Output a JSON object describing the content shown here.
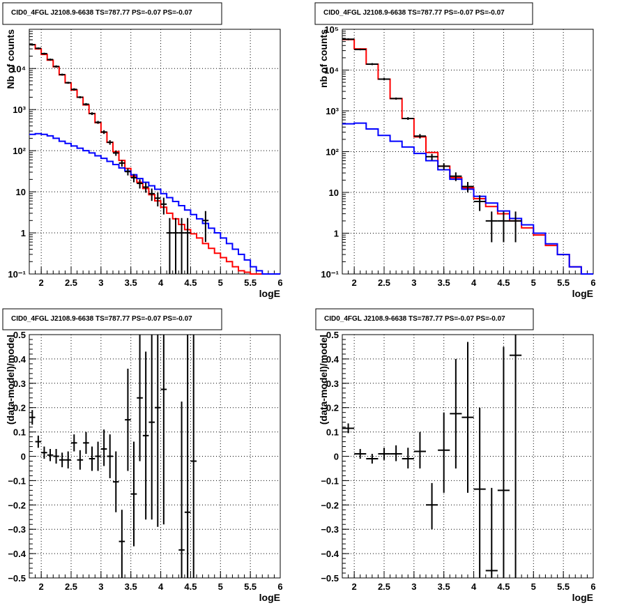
{
  "colors": {
    "total_model": "#ff0000",
    "component_model": "#0000ff",
    "data": "#000000",
    "grid": "#000000"
  },
  "chart_data": [
    {
      "id": "p1",
      "type": "line",
      "title": "CID0_4FGL J2108.9-6638 TS=787.77 PS=-0.07 PS=-0.07",
      "xlabel": "logE",
      "ylabel": "Nb of counts",
      "xlim": [
        1.8,
        6.0
      ],
      "ylim": [
        0.1,
        90000
      ],
      "yscale": "log",
      "grid": true,
      "legend": "none",
      "xticks": [
        2,
        2.5,
        3,
        3.5,
        4,
        4.5,
        5,
        5.5,
        6
      ],
      "xtick_labels": [
        "2",
        "2.5",
        "3",
        "3.5",
        "4",
        "4.5",
        "5",
        "5.5",
        "6"
      ],
      "yticks": [
        0.1,
        1,
        10,
        100,
        1000,
        10000
      ],
      "ytick_labels": [
        "10⁻¹",
        "1",
        "10",
        "10²",
        "10³",
        "10⁴"
      ],
      "bin_edges": [
        1.8,
        1.9,
        2.0,
        2.1,
        2.2,
        2.3,
        2.4,
        2.5,
        2.6,
        2.7,
        2.8,
        2.9,
        3.0,
        3.1,
        3.2,
        3.3,
        3.4,
        3.5,
        3.6,
        3.7,
        3.8,
        3.9,
        4.0,
        4.1,
        4.2,
        4.3,
        4.4,
        4.5,
        4.6,
        4.7,
        4.8,
        4.9,
        5.0,
        5.1,
        5.2,
        5.3,
        5.4,
        5.5,
        5.6,
        5.7,
        5.8,
        5.9,
        6.0
      ],
      "series": [
        {
          "name": "",
          "role": "total",
          "color": "#ff0000",
          "values": [
            38000,
            30000,
            22000,
            16000,
            11000,
            7000,
            4500,
            3000,
            2000,
            1300,
            800,
            480,
            280,
            160,
            95,
            58,
            37,
            24,
            17,
            12,
            8.5,
            6,
            4.2,
            3.0,
            2.2,
            1.6,
            1.2,
            0.95,
            0.75,
            0.55,
            0.42,
            0.32,
            0.25,
            0.2,
            0.15,
            0.12,
            0.11,
            0.1,
            0.1,
            0.1,
            0.1,
            0.1
          ]
        },
        {
          "name": "",
          "role": "component",
          "color": "#0000ff",
          "values": [
            250,
            260,
            250,
            230,
            200,
            170,
            150,
            130,
            115,
            100,
            88,
            75,
            65,
            55,
            46,
            38,
            32,
            26,
            21,
            17,
            14,
            11.5,
            9,
            7.2,
            5.8,
            4.6,
            3.6,
            2.8,
            2.2,
            1.7,
            1.3,
            1.0,
            0.75,
            0.55,
            0.4,
            0.3,
            0.22,
            0.15,
            0.12,
            0.1,
            0.1,
            0.1
          ]
        }
      ],
      "points": [
        {
          "x": 1.85,
          "y": 38000,
          "lo": 36000,
          "hi": 40000,
          "xerr": 0.05
        },
        {
          "x": 1.95,
          "y": 31000,
          "lo": 29500,
          "hi": 32500,
          "xerr": 0.05
        },
        {
          "x": 2.05,
          "y": 23000,
          "lo": 21800,
          "hi": 24200,
          "xerr": 0.05
        },
        {
          "x": 2.15,
          "y": 16500,
          "lo": 15600,
          "hi": 17400,
          "xerr": 0.05
        },
        {
          "x": 2.25,
          "y": 11200,
          "lo": 10500,
          "hi": 11900,
          "xerr": 0.05
        },
        {
          "x": 2.35,
          "y": 7100,
          "lo": 6700,
          "hi": 7500,
          "xerr": 0.05
        },
        {
          "x": 2.45,
          "y": 4500,
          "lo": 4250,
          "hi": 4750,
          "xerr": 0.05
        },
        {
          "x": 2.55,
          "y": 3100,
          "lo": 2900,
          "hi": 3300,
          "xerr": 0.05
        },
        {
          "x": 2.65,
          "y": 2000,
          "lo": 1880,
          "hi": 2120,
          "xerr": 0.05
        },
        {
          "x": 2.75,
          "y": 1350,
          "lo": 1260,
          "hi": 1440,
          "xerr": 0.05
        },
        {
          "x": 2.85,
          "y": 800,
          "lo": 740,
          "hi": 860,
          "xerr": 0.05
        },
        {
          "x": 2.95,
          "y": 490,
          "lo": 450,
          "hi": 530,
          "xerr": 0.05
        },
        {
          "x": 3.05,
          "y": 285,
          "lo": 255,
          "hi": 315,
          "xerr": 0.05
        },
        {
          "x": 3.15,
          "y": 160,
          "lo": 140,
          "hi": 180,
          "xerr": 0.05
        },
        {
          "x": 3.25,
          "y": 88,
          "lo": 75,
          "hi": 101,
          "xerr": 0.05
        },
        {
          "x": 3.35,
          "y": 50,
          "lo": 41,
          "hi": 59,
          "xerr": 0.05
        },
        {
          "x": 3.45,
          "y": 31,
          "lo": 25,
          "hi": 37,
          "xerr": 0.05
        },
        {
          "x": 3.55,
          "y": 22,
          "lo": 17,
          "hi": 27,
          "xerr": 0.05
        },
        {
          "x": 3.65,
          "y": 16,
          "lo": 12,
          "hi": 20,
          "xerr": 0.05
        },
        {
          "x": 3.75,
          "y": 13,
          "lo": 9.5,
          "hi": 16.5,
          "xerr": 0.05
        },
        {
          "x": 3.85,
          "y": 9,
          "lo": 6,
          "hi": 12,
          "xerr": 0.05
        },
        {
          "x": 3.95,
          "y": 7,
          "lo": 4.4,
          "hi": 9.6,
          "xerr": 0.05
        },
        {
          "x": 4.05,
          "y": 5,
          "lo": 2.8,
          "hi": 7.2,
          "xerr": 0.05
        },
        {
          "x": 4.15,
          "y": 1,
          "lo": 0.1,
          "hi": 2.3,
          "xerr": 0.05
        },
        {
          "x": 4.25,
          "y": 1,
          "lo": 0.1,
          "hi": 2.3,
          "xerr": 0.05
        },
        {
          "x": 4.35,
          "y": 1,
          "lo": 0.1,
          "hi": 2.3,
          "xerr": 0.05
        },
        {
          "x": 4.45,
          "y": 1,
          "lo": 0.1,
          "hi": 2.3,
          "xerr": 0.05
        },
        {
          "x": 4.75,
          "y": 2,
          "lo": 0.6,
          "hi": 3.4,
          "xerr": 0.05
        }
      ]
    },
    {
      "id": "p2",
      "type": "line",
      "title": "CID0_4FGL J2108.9-6638 TS=787.77 PS=-0.07 PS=-0.07",
      "xlabel": "logE",
      "ylabel": "nb of counts",
      "xlim": [
        1.8,
        6.0
      ],
      "ylim": [
        0.1,
        100000
      ],
      "yscale": "log",
      "grid": true,
      "legend": "none",
      "xticks": [
        2,
        2.5,
        3,
        3.5,
        4,
        4.5,
        5,
        5.5,
        6
      ],
      "xtick_labels": [
        "2",
        "2.5",
        "3",
        "3.5",
        "4",
        "4.5",
        "5",
        "5.5",
        "6"
      ],
      "yticks": [
        0.1,
        1,
        10,
        100,
        1000,
        10000,
        100000
      ],
      "ytick_labels": [
        "10⁻¹",
        "1",
        "10",
        "10²",
        "10³",
        "10⁴",
        "10⁵"
      ],
      "bin_edges": [
        1.8,
        2.0,
        2.2,
        2.4,
        2.6,
        2.8,
        3.0,
        3.2,
        3.4,
        3.6,
        3.8,
        4.0,
        4.2,
        4.4,
        4.6,
        4.8,
        5.0,
        5.2,
        5.4,
        5.6,
        5.8,
        6.0
      ],
      "series": [
        {
          "name": "",
          "role": "total",
          "color": "#ff0000",
          "values": [
            56000,
            33000,
            14000,
            6000,
            2000,
            650,
            230,
            95,
            44,
            23,
            13,
            7,
            4.5,
            3.0,
            2.0,
            1.35,
            0.9,
            0.5,
            0.3,
            0.15,
            0.1
          ]
        },
        {
          "name": "",
          "role": "component",
          "color": "#0000ff",
          "values": [
            480,
            500,
            360,
            250,
            180,
            130,
            90,
            60,
            36,
            21,
            12,
            8,
            5.5,
            3.5,
            2.3,
            1.6,
            1.0,
            0.55,
            0.3,
            0.15,
            0.1
          ]
        }
      ],
      "points": [
        {
          "x": 1.9,
          "y": 57000,
          "lo": 54000,
          "hi": 60000,
          "xerr": 0.1
        },
        {
          "x": 2.1,
          "y": 32000,
          "lo": 30500,
          "hi": 33500,
          "xerr": 0.1
        },
        {
          "x": 2.3,
          "y": 14000,
          "lo": 13200,
          "hi": 14800,
          "xerr": 0.1
        },
        {
          "x": 2.5,
          "y": 6000,
          "lo": 5600,
          "hi": 6400,
          "xerr": 0.1
        },
        {
          "x": 2.7,
          "y": 2000,
          "lo": 1880,
          "hi": 2120,
          "xerr": 0.1
        },
        {
          "x": 2.9,
          "y": 650,
          "lo": 600,
          "hi": 700,
          "xerr": 0.1
        },
        {
          "x": 3.1,
          "y": 240,
          "lo": 210,
          "hi": 270,
          "xerr": 0.1
        },
        {
          "x": 3.3,
          "y": 75,
          "lo": 62,
          "hi": 88,
          "xerr": 0.1
        },
        {
          "x": 3.5,
          "y": 44,
          "lo": 36,
          "hi": 52,
          "xerr": 0.1
        },
        {
          "x": 3.7,
          "y": 25,
          "lo": 19,
          "hi": 31,
          "xerr": 0.1
        },
        {
          "x": 3.9,
          "y": 14,
          "lo": 10,
          "hi": 18,
          "xerr": 0.1
        },
        {
          "x": 4.1,
          "y": 6,
          "lo": 3.5,
          "hi": 8.5,
          "xerr": 0.1
        },
        {
          "x": 4.3,
          "y": 2,
          "lo": 0.6,
          "hi": 3.4,
          "xerr": 0.1
        },
        {
          "x": 4.5,
          "y": 2,
          "lo": 0.6,
          "hi": 3.4,
          "xerr": 0.1
        },
        {
          "x": 4.7,
          "y": 2,
          "lo": 0.6,
          "hi": 3.4,
          "xerr": 0.1
        }
      ]
    },
    {
      "id": "p3",
      "type": "scatter",
      "title": "CID0_4FGL J2108.9-6638 TS=787.77 PS=-0.07 PS=-0.07",
      "xlabel": "logE",
      "ylabel": "(data-model)/model",
      "xlim": [
        1.8,
        6.0
      ],
      "ylim": [
        -0.5,
        0.5
      ],
      "yscale": "linear",
      "grid": true,
      "legend": "none",
      "xticks": [
        2,
        2.5,
        3,
        3.5,
        4,
        4.5,
        5,
        5.5,
        6
      ],
      "xtick_labels": [
        "2",
        "2.5",
        "3",
        "3.5",
        "4",
        "4.5",
        "5",
        "5.5",
        "6"
      ],
      "yticks": [
        -0.5,
        -0.4,
        -0.3,
        -0.2,
        -0.1,
        0,
        0.1,
        0.2,
        0.3,
        0.4,
        0.5
      ],
      "ytick_labels": [
        "−0.5",
        "−0.4",
        "−0.3",
        "−0.2",
        "−0.1",
        "0",
        "0.1",
        "0.2",
        "0.3",
        "0.4",
        "0.5"
      ],
      "points": [
        {
          "x": 1.85,
          "y": 0.16,
          "lo": 0.13,
          "hi": 0.19,
          "xerr": 0.05
        },
        {
          "x": 1.95,
          "y": 0.06,
          "lo": 0.035,
          "hi": 0.085,
          "xerr": 0.05
        },
        {
          "x": 2.05,
          "y": 0.015,
          "lo": -0.01,
          "hi": 0.04,
          "xerr": 0.05
        },
        {
          "x": 2.15,
          "y": 0.005,
          "lo": -0.02,
          "hi": 0.03,
          "xerr": 0.05
        },
        {
          "x": 2.25,
          "y": 0.0,
          "lo": -0.03,
          "hi": 0.03,
          "xerr": 0.05
        },
        {
          "x": 2.35,
          "y": -0.015,
          "lo": -0.045,
          "hi": 0.015,
          "xerr": 0.05
        },
        {
          "x": 2.45,
          "y": -0.015,
          "lo": -0.05,
          "hi": 0.02,
          "xerr": 0.05
        },
        {
          "x": 2.55,
          "y": 0.055,
          "lo": 0.02,
          "hi": 0.09,
          "xerr": 0.05
        },
        {
          "x": 2.65,
          "y": -0.015,
          "lo": -0.055,
          "hi": 0.025,
          "xerr": 0.05
        },
        {
          "x": 2.75,
          "y": 0.055,
          "lo": 0.01,
          "hi": 0.1,
          "xerr": 0.05
        },
        {
          "x": 2.85,
          "y": -0.01,
          "lo": -0.06,
          "hi": 0.04,
          "xerr": 0.05
        },
        {
          "x": 2.95,
          "y": 0.0,
          "lo": -0.06,
          "hi": 0.06,
          "xerr": 0.05
        },
        {
          "x": 3.05,
          "y": 0.03,
          "lo": -0.04,
          "hi": 0.11,
          "xerr": 0.05
        },
        {
          "x": 3.15,
          "y": 0.0,
          "lo": -0.09,
          "hi": 0.09,
          "xerr": 0.05
        },
        {
          "x": 3.25,
          "y": -0.105,
          "lo": -0.23,
          "hi": 0.02,
          "xerr": 0.05
        },
        {
          "x": 3.35,
          "y": -0.35,
          "lo": -0.5,
          "hi": -0.22,
          "xerr": 0.05
        },
        {
          "x": 3.45,
          "y": 0.15,
          "lo": -0.06,
          "hi": 0.36,
          "xerr": 0.05
        },
        {
          "x": 3.55,
          "y": -0.155,
          "lo": -0.37,
          "hi": 0.06,
          "xerr": 0.05
        },
        {
          "x": 3.65,
          "y": 0.24,
          "lo": -0.02,
          "hi": 0.5,
          "xerr": 0.05
        },
        {
          "x": 3.75,
          "y": 0.085,
          "lo": -0.26,
          "hi": 0.43,
          "xerr": 0.05
        },
        {
          "x": 3.85,
          "y": 0.14,
          "lo": -0.26,
          "hi": 0.5,
          "xerr": 0.05
        },
        {
          "x": 3.95,
          "y": 0.2,
          "lo": -0.29,
          "hi": 0.5,
          "xerr": 0.05
        },
        {
          "x": 4.05,
          "y": 0.275,
          "lo": -0.28,
          "hi": 0.5,
          "xerr": 0.05
        },
        {
          "x": 4.35,
          "y": -0.385,
          "lo": -0.5,
          "hi": 0.225,
          "xerr": 0.05
        },
        {
          "x": 4.45,
          "y": -0.23,
          "lo": -0.5,
          "hi": 0.5,
          "xerr": 0.05
        },
        {
          "x": 4.55,
          "y": -0.02,
          "lo": -0.5,
          "hi": 0.5,
          "xerr": 0.05
        }
      ]
    },
    {
      "id": "p4",
      "type": "scatter",
      "title": "CID0_4FGL J2108.9-6638 TS=787.77 PS=-0.07 PS=-0.07",
      "xlabel": "logE",
      "ylabel": "(data-model)/model",
      "xlim": [
        1.8,
        6.0
      ],
      "ylim": [
        -0.5,
        0.5
      ],
      "yscale": "linear",
      "grid": true,
      "legend": "none",
      "xticks": [
        2,
        2.5,
        3,
        3.5,
        4,
        4.5,
        5,
        5.5,
        6
      ],
      "xtick_labels": [
        "2",
        "2.5",
        "3",
        "3.5",
        "4",
        "4.5",
        "5",
        "5.5",
        "6"
      ],
      "yticks": [
        -0.5,
        -0.4,
        -0.3,
        -0.2,
        -0.1,
        0,
        0.1,
        0.2,
        0.3,
        0.4,
        0.5
      ],
      "ytick_labels": [
        "−0.5",
        "−0.4",
        "−0.3",
        "−0.2",
        "−0.1",
        "0",
        "0.1",
        "0.2",
        "0.3",
        "0.4",
        "0.5"
      ],
      "points": [
        {
          "x": 1.9,
          "y": 0.115,
          "lo": 0.095,
          "hi": 0.135,
          "xerr": 0.1
        },
        {
          "x": 2.1,
          "y": 0.01,
          "lo": -0.01,
          "hi": 0.03,
          "xerr": 0.1
        },
        {
          "x": 2.3,
          "y": -0.01,
          "lo": -0.03,
          "hi": 0.01,
          "xerr": 0.1
        },
        {
          "x": 2.5,
          "y": 0.01,
          "lo": -0.015,
          "hi": 0.035,
          "xerr": 0.1
        },
        {
          "x": 2.7,
          "y": 0.01,
          "lo": -0.02,
          "hi": 0.045,
          "xerr": 0.1
        },
        {
          "x": 2.9,
          "y": -0.01,
          "lo": -0.05,
          "hi": 0.035,
          "xerr": 0.1
        },
        {
          "x": 3.1,
          "y": 0.02,
          "lo": -0.05,
          "hi": 0.1,
          "xerr": 0.1
        },
        {
          "x": 3.3,
          "y": -0.2,
          "lo": -0.3,
          "hi": -0.11,
          "xerr": 0.1
        },
        {
          "x": 3.5,
          "y": 0.025,
          "lo": -0.15,
          "hi": 0.18,
          "xerr": 0.1
        },
        {
          "x": 3.7,
          "y": 0.175,
          "lo": -0.05,
          "hi": 0.4,
          "xerr": 0.1
        },
        {
          "x": 3.9,
          "y": 0.16,
          "lo": -0.15,
          "hi": 0.47,
          "xerr": 0.1
        },
        {
          "x": 4.1,
          "y": -0.135,
          "lo": -0.5,
          "hi": 0.2,
          "xerr": 0.1
        },
        {
          "x": 4.3,
          "y": -0.47,
          "lo": -0.5,
          "hi": -0.13,
          "xerr": 0.1
        },
        {
          "x": 4.5,
          "y": -0.14,
          "lo": -0.5,
          "hi": 0.45,
          "xerr": 0.1
        },
        {
          "x": 4.7,
          "y": 0.415,
          "lo": -0.5,
          "hi": 0.5,
          "xerr": 0.1
        }
      ]
    }
  ]
}
